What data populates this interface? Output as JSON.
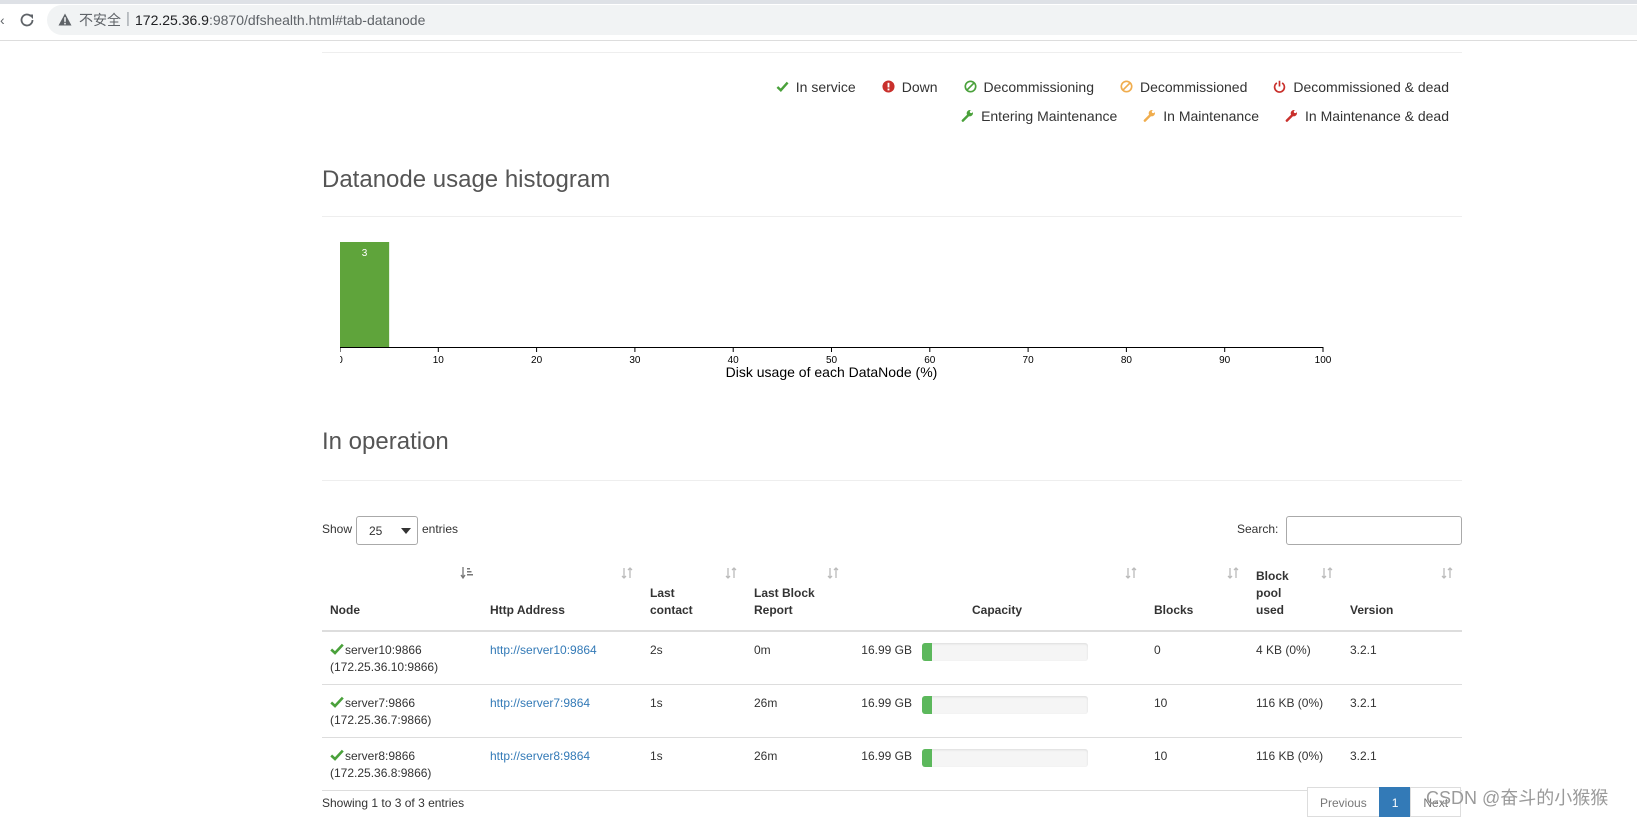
{
  "browser": {
    "insecure_label": "不安全",
    "separator": "|",
    "url_host": "172.25.36.9",
    "url_rest": ":9870/dfshealth.html#tab-datanode"
  },
  "legend": {
    "row1": [
      {
        "label": "In service",
        "icon": "check-icon",
        "color": "#4aa13b"
      },
      {
        "label": "Down",
        "icon": "exclamation-circle-icon",
        "color": "#c9302c"
      },
      {
        "label": "Decommissioning",
        "icon": "ban-circle-icon",
        "color": "#4aa13b"
      },
      {
        "label": "Decommissioned",
        "icon": "ban-circle-icon",
        "color": "#f0ad4e"
      },
      {
        "label": "Decommissioned & dead",
        "icon": "power-off-icon",
        "color": "#c9302c"
      }
    ],
    "row2": [
      {
        "label": "Entering Maintenance",
        "icon": "wrench-icon",
        "color": "#4aa13b"
      },
      {
        "label": "In Maintenance",
        "icon": "wrench-icon",
        "color": "#f0ad4e"
      },
      {
        "label": "In Maintenance & dead",
        "icon": "wrench-icon",
        "color": "#c9302c"
      }
    ]
  },
  "histogram": {
    "title": "Datanode usage histogram"
  },
  "chart_data": {
    "type": "bar",
    "xlabel": "Disk usage of each DataNode (%)",
    "xlim": [
      0,
      100
    ],
    "xticks": [
      0,
      10,
      20,
      30,
      40,
      50,
      60,
      70,
      80,
      90,
      100
    ],
    "bins": [
      {
        "x0": 0,
        "x1": 5,
        "count": 3
      }
    ],
    "bar_color": "#5fa43b"
  },
  "operation": {
    "title": "In operation",
    "show_label": "Show",
    "page_length": "25",
    "entries_label": "entries",
    "search_label": "Search:",
    "search_value": "",
    "columns": [
      "Node",
      "Http Address",
      "Last contact",
      "Last Block Report",
      "Capacity",
      "Blocks",
      "Block pool used",
      "Version"
    ],
    "rows": [
      {
        "node": "server10:9866",
        "node_ip": "(172.25.36.10:9866)",
        "http": "http://server10:9864",
        "last_contact": "2s",
        "last_block_report": "0m",
        "capacity": "16.99 GB",
        "used_fraction": 0.06,
        "blocks": "0",
        "block_pool_used": "4 KB (0%)",
        "version": "3.2.1"
      },
      {
        "node": "server7:9866",
        "node_ip": "(172.25.36.7:9866)",
        "http": "http://server7:9864",
        "last_contact": "1s",
        "last_block_report": "26m",
        "capacity": "16.99 GB",
        "used_fraction": 0.06,
        "blocks": "10",
        "block_pool_used": "116 KB (0%)",
        "version": "3.2.1"
      },
      {
        "node": "server8:9866",
        "node_ip": "(172.25.36.8:9866)",
        "http": "http://server8:9864",
        "last_contact": "1s",
        "last_block_report": "26m",
        "capacity": "16.99 GB",
        "used_fraction": 0.06,
        "blocks": "10",
        "block_pool_used": "116 KB (0%)",
        "version": "3.2.1"
      }
    ],
    "info": "Showing 1 to 3 of 3 entries",
    "pager": {
      "previous": "Previous",
      "current": "1",
      "next": "Next"
    }
  },
  "watermark": "CSDN @奋斗的小猴猴"
}
